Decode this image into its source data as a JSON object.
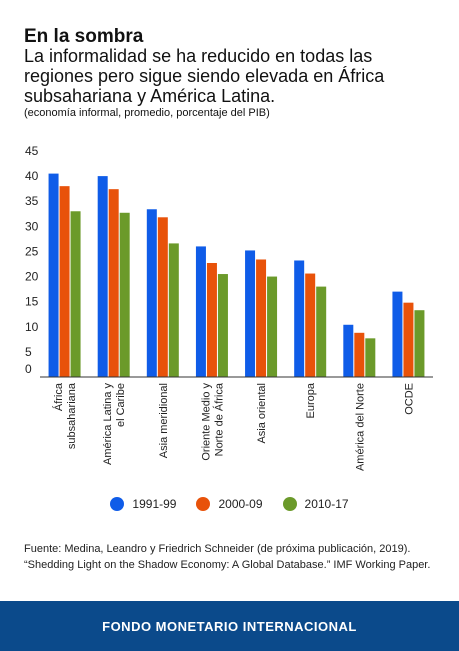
{
  "header": {
    "title": "En la sombra",
    "subtitle": "La informalidad se ha reducido en todas las regiones pero sigue siendo elevada en África subsahariana y América Latina.",
    "note": "(economía informal, promedio, porcentaje del PIB)"
  },
  "chart_data": {
    "type": "bar",
    "categories": [
      [
        "África",
        "subsahariana"
      ],
      [
        "América Latina y",
        "el Caribe"
      ],
      [
        "Asia meridional"
      ],
      [
        "Oriente Medio y",
        "Norte de África"
      ],
      [
        "Asia oriental"
      ],
      [
        "Europa"
      ],
      [
        "América del Norte"
      ],
      [
        "OCDE"
      ]
    ],
    "series": [
      {
        "name": "1991-99",
        "color": "#0f5ce8",
        "values": [
          40.5,
          40.0,
          33.4,
          26.0,
          25.2,
          23.2,
          10.4,
          17.0
        ]
      },
      {
        "name": "2000-09",
        "color": "#e8520a",
        "values": [
          38.0,
          37.4,
          31.8,
          22.7,
          23.4,
          20.6,
          8.8,
          14.8
        ]
      },
      {
        "name": "2010-17",
        "color": "#6b9a2a",
        "values": [
          33.0,
          32.7,
          26.6,
          20.5,
          20.0,
          18.0,
          7.7,
          13.3
        ]
      }
    ],
    "yticks": [
      0,
      5,
      10,
      15,
      20,
      25,
      30,
      35,
      40,
      45
    ],
    "ylim": [
      0,
      45
    ],
    "grid": false,
    "legend": "bottom"
  },
  "source": {
    "line1": "Fuente: Medina, Leandro y Friedrich Schneider (de próxima publicación, 2019).",
    "line2": "“Shedding Light on the Shadow Economy: A Global Database.” IMF Working Paper."
  },
  "footer": {
    "text": "FONDO MONETARIO INTERNACIONAL"
  }
}
